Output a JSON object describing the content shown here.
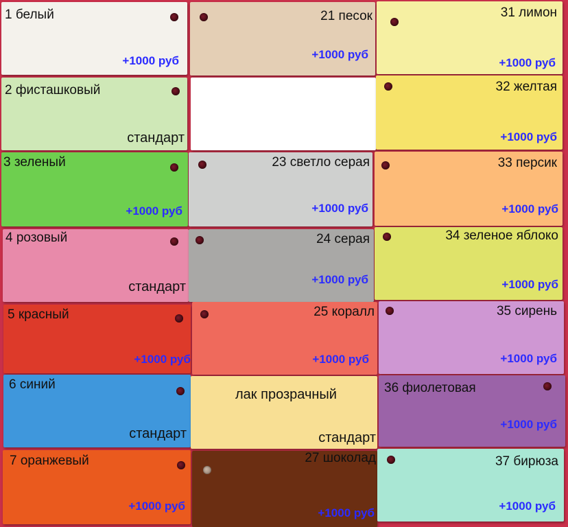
{
  "column_left": [
    {
      "name": "1 белый",
      "price": "+1000 руб",
      "color": "#f4f2ec"
    },
    {
      "name": "2 фисташковый",
      "note": "стандарт",
      "color": "#cfe8b7"
    },
    {
      "name": "3 зеленый",
      "price": "+1000 руб",
      "color": "#6ecf4f"
    },
    {
      "name": "4 розовый",
      "note": "стандарт",
      "color": "#e88aaa"
    },
    {
      "name": "5 красный",
      "price": "+1000 руб",
      "color": "#dd3a2a"
    },
    {
      "name": "6 синий",
      "note": "стандарт",
      "color": "#3f97dc"
    },
    {
      "name": "7 оранжевый",
      "price": "+1000 руб",
      "color": "#ea5a1e"
    }
  ],
  "column_middle": [
    {
      "name": "21 песок",
      "price": "+1000 руб",
      "color": "#e4cfb5"
    },
    {
      "name": "",
      "color": "#ffffff"
    },
    {
      "name": "23 светло серая",
      "price": "+1000 руб",
      "color": "#cfd0cf"
    },
    {
      "name": "24 серая",
      "price": "+1000 руб",
      "color": "#a9a8a6"
    },
    {
      "name": "25 коралл",
      "price": "+1000 руб",
      "color": "#ef6a5c"
    },
    {
      "name": "лак прозрачный",
      "note": "стандарт",
      "color": "#f8df94"
    },
    {
      "name": "27 шоколад",
      "price": "+1000 руб",
      "color": "#6b2e12"
    }
  ],
  "column_right": [
    {
      "name": "31 лимон",
      "price": "+1000 руб",
      "color": "#f6f0a2"
    },
    {
      "name": "32 желтая",
      "price": "+1000 руб",
      "color": "#f6e36a"
    },
    {
      "name": "33 персик",
      "price": "+1000 руб",
      "color": "#fdbb78"
    },
    {
      "name": "34 зеленое яблоко",
      "price": "+1000 руб",
      "color": "#dfe36a"
    },
    {
      "name": "35 сирень",
      "price": "+1000 руб",
      "color": "#cf97d3"
    },
    {
      "name": "36 фиолетовая",
      "price": "+1000 руб",
      "color": "#9b63a8"
    },
    {
      "name": "37 бирюза",
      "price": "+1000 руб",
      "color": "#a9e7d4"
    }
  ]
}
